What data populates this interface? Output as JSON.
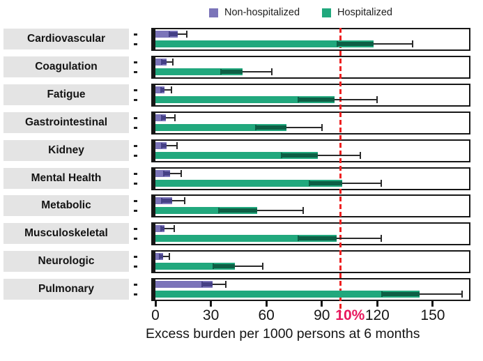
{
  "legend": {
    "items": [
      {
        "label": "Non-hospitalized",
        "color": "#7b74b9"
      },
      {
        "label": "Hospitalized",
        "color": "#21a87d"
      }
    ]
  },
  "chart_data": {
    "type": "bar",
    "orientation": "horizontal",
    "xlabel": "Excess burden per 1000 persons at 6 months",
    "ylabel": "",
    "xlim": [
      0,
      170
    ],
    "xticks": [
      0,
      30,
      60,
      90,
      120,
      150
    ],
    "grid": false,
    "legend_position": "top",
    "reference_line": {
      "x": 100,
      "label": "10%",
      "color": "#ee2020",
      "label_color": "#e8175d",
      "style": "dashed"
    },
    "categories": [
      "Cardiovascular",
      "Coagulation",
      "Fatigue",
      "Gastrointestinal",
      "Kidney",
      "Mental Health",
      "Metabolic",
      "Musculoskeletal",
      "Neurologic",
      "Pulmonary"
    ],
    "series": [
      {
        "name": "Non-hospitalized",
        "color": "#7b74b9",
        "error_color": "#454086",
        "values": [
          12,
          6,
          5,
          5.5,
          6,
          8,
          9,
          5,
          4,
          31
        ],
        "ci_low": [
          7,
          3,
          2.5,
          3,
          3,
          4,
          3,
          2.5,
          2,
          25
        ],
        "ci_high": [
          17,
          9.5,
          8.5,
          10.5,
          11.5,
          14,
          16,
          10,
          7.5,
          38
        ]
      },
      {
        "name": "Hospitalized",
        "color": "#21a87d",
        "error_color": "#0d5f45",
        "values": [
          118,
          47,
          97,
          71,
          88,
          101,
          55,
          98,
          43,
          143
        ],
        "ci_low": [
          98,
          35,
          77,
          54,
          68,
          83,
          34,
          77,
          31,
          122
        ],
        "ci_high": [
          139,
          63,
          120,
          90,
          111,
          122,
          80,
          122,
          58,
          166
        ]
      }
    ]
  },
  "colors": {
    "label_box_bg": "#e4e4e4",
    "panel_border": "#171717",
    "whisker": "#2a2a2a",
    "text": "#151515"
  }
}
